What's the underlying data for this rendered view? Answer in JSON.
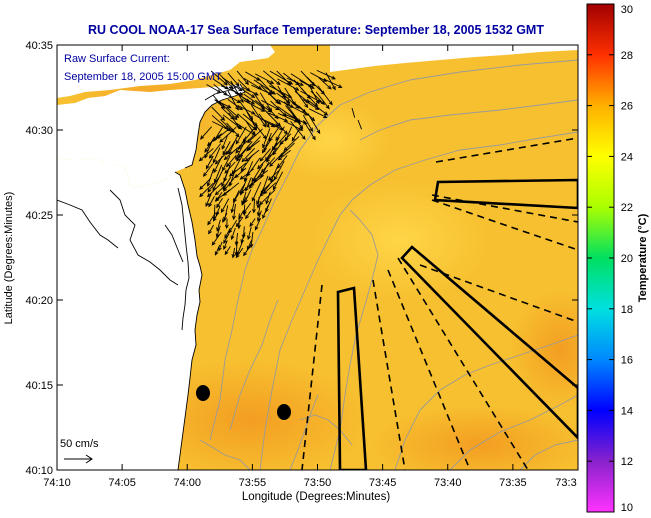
{
  "title": "RU COOL  NOAA-17  Sea Surface Temperature:  September 18, 2005 1532 GMT",
  "annotation": {
    "line1": "Raw Surface Current:",
    "line2": "September 18, 2005 15:00 GMT"
  },
  "scale_label": "50 cm/s",
  "x_axis": {
    "label": "Longitude (Degrees:Minutes)",
    "ticks": [
      "74:10",
      "74:05",
      "74:00",
      "73:55",
      "73:50",
      "73:45",
      "73:40",
      "73:35",
      "73:3"
    ]
  },
  "y_axis": {
    "label": "Latitude (Degrees:Minutes)",
    "ticks": [
      "40:35",
      "40:30",
      "40:25",
      "40:20",
      "40:15",
      "40:10"
    ]
  },
  "colorbar": {
    "label": "Temperature (°C)",
    "ticks": [
      "30",
      "28",
      "26",
      "24",
      "22",
      "20",
      "18",
      "16",
      "14",
      "12",
      "10"
    ],
    "min": 10,
    "max": 30
  },
  "colors": {
    "title": "#0000a0",
    "sea_main": "#f7c030",
    "sea_warm": "#f5a623",
    "land": "#ffffff",
    "contour": "#9a9a9a",
    "arrows": "#000000"
  }
}
